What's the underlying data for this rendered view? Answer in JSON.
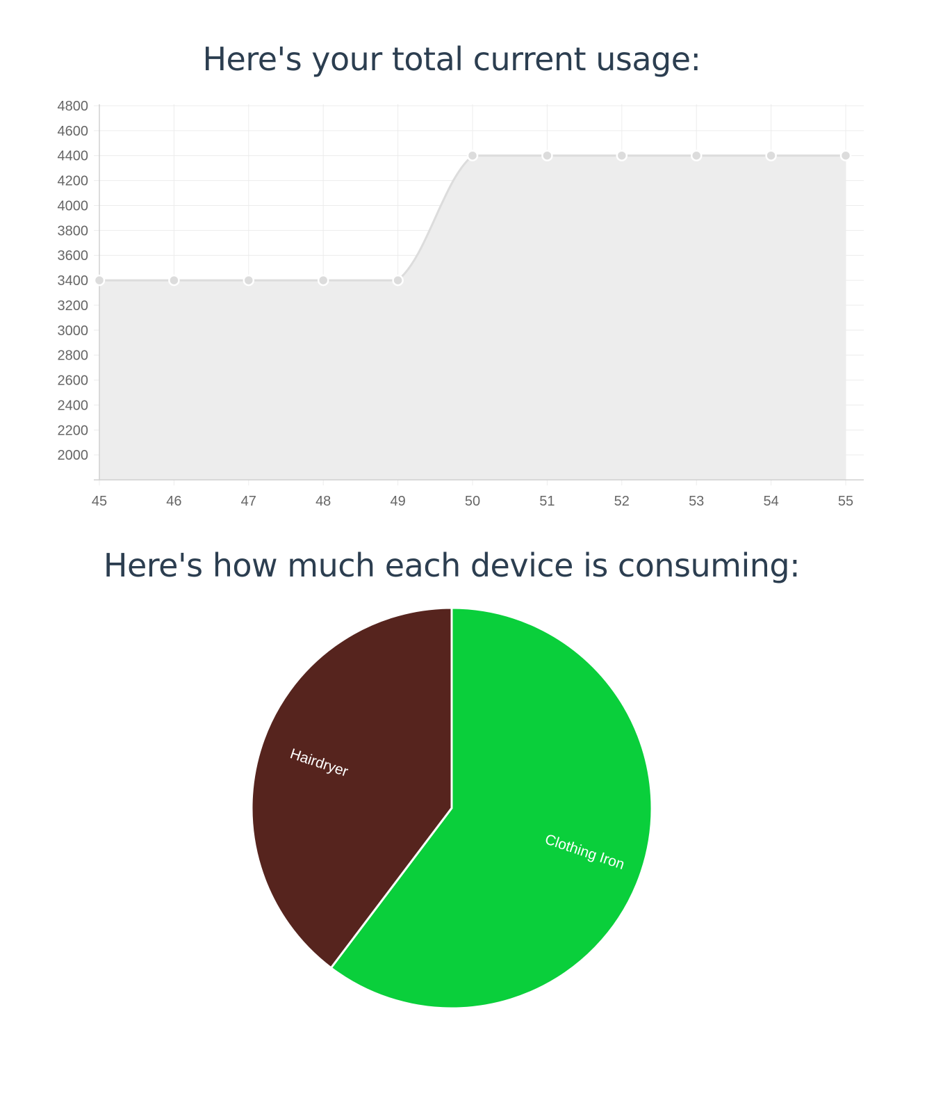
{
  "headings": {
    "usage": "Here's your total current usage:",
    "devices": "Here's how much each device is consuming:"
  },
  "chart_data": [
    {
      "type": "area",
      "title": "Here's your total current usage:",
      "x": [
        45,
        46,
        47,
        48,
        49,
        50,
        51,
        52,
        53,
        54,
        55
      ],
      "series": [
        {
          "values": [
            3400,
            3400,
            3400,
            3400,
            3400,
            4400,
            4400,
            4400,
            4400,
            4400,
            4400
          ],
          "color": "#dcdcdc",
          "fill": "#ededed"
        }
      ],
      "xlim": [
        45,
        55
      ],
      "ylim": [
        1800,
        4800
      ],
      "yticks": [
        4800,
        4600,
        4400,
        4200,
        4000,
        3800,
        3600,
        3400,
        3200,
        3000,
        2800,
        2600,
        2400,
        2200,
        2000
      ],
      "grid": true,
      "xlabel": "",
      "ylabel": ""
    },
    {
      "type": "pie",
      "title": "Here's how much each device is consuming:",
      "slices": [
        {
          "label": "Clothing Iron",
          "value": 0.603,
          "color": "#0acf3b"
        },
        {
          "label": "Hairdryer",
          "value": 0.397,
          "color": "#56241e"
        }
      ]
    }
  ]
}
